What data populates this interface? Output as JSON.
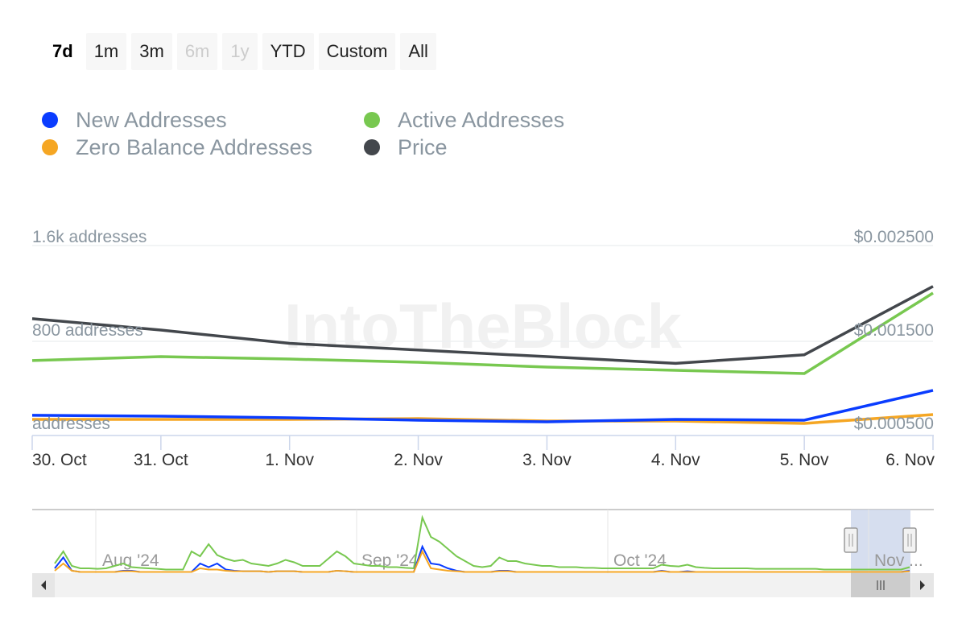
{
  "range_buttons": [
    {
      "label": "7d",
      "state": "active"
    },
    {
      "label": "1m",
      "state": "normal"
    },
    {
      "label": "3m",
      "state": "normal"
    },
    {
      "label": "6m",
      "state": "disabled"
    },
    {
      "label": "1y",
      "state": "disabled"
    },
    {
      "label": "YTD",
      "state": "normal"
    },
    {
      "label": "Custom",
      "state": "normal"
    },
    {
      "label": "All",
      "state": "normal"
    }
  ],
  "watermark": "IntoTheBlock",
  "chart_data": {
    "type": "line",
    "x": [
      "30. Oct",
      "31. Oct",
      "1. Nov",
      "2. Nov",
      "3. Nov",
      "4. Nov",
      "5. Nov",
      "6. Nov"
    ],
    "left_axis": {
      "ticks": [
        "1.6k addresses",
        "800 addresses",
        "addresses"
      ],
      "range": [
        0,
        1600
      ]
    },
    "right_axis": {
      "ticks": [
        "$0.002500",
        "$0.001500",
        "$0.000500"
      ],
      "range": [
        0.0005,
        0.0025
      ]
    },
    "series": [
      {
        "name": "New Addresses",
        "color": "#0a3cff",
        "axis": "left",
        "values": [
          170,
          163,
          149,
          129,
          115,
          136,
          129,
          380
        ]
      },
      {
        "name": "Active Addresses",
        "color": "#78c850",
        "axis": "left",
        "values": [
          631,
          664,
          644,
          617,
          576,
          549,
          522,
          1200
        ]
      },
      {
        "name": "Zero Balance Addresses",
        "color": "#f5a623",
        "axis": "left",
        "values": [
          136,
          136,
          136,
          142,
          122,
          122,
          102,
          176
        ]
      },
      {
        "name": "Price",
        "color": "#43474c",
        "axis": "right",
        "values": [
          0.00173,
          0.00161,
          0.00147,
          0.0014,
          0.00133,
          0.00126,
          0.00135,
          0.00207
        ]
      }
    ],
    "navigator": {
      "labels": [
        "Aug '24",
        "Sep '24",
        "Oct '24",
        "Nov ..."
      ],
      "active": [
        40,
        90,
        30,
        20,
        20,
        18,
        20,
        30,
        40,
        25,
        22,
        20,
        18,
        15,
        15,
        15,
        90,
        70,
        120,
        75,
        60,
        50,
        55,
        40,
        35,
        30,
        40,
        55,
        45,
        30,
        30,
        30,
        60,
        90,
        70,
        40,
        35,
        30,
        30,
        25,
        25,
        22,
        20,
        230,
        150,
        130,
        100,
        70,
        50,
        30,
        25,
        30,
        65,
        50,
        50,
        40,
        35,
        30,
        30,
        25,
        25,
        25,
        22,
        22,
        20,
        20,
        20,
        20,
        20,
        20,
        20,
        35,
        30,
        28,
        35,
        25,
        22,
        20,
        20,
        20,
        20,
        20,
        18,
        18,
        18,
        18,
        18,
        18,
        18,
        18,
        15,
        15,
        15,
        15,
        15,
        15,
        15,
        15,
        15,
        15,
        25
      ],
      "new": [
        20,
        65,
        10,
        5,
        5,
        5,
        5,
        5,
        10,
        10,
        5,
        5,
        5,
        5,
        5,
        5,
        5,
        40,
        25,
        40,
        15,
        10,
        8,
        8,
        8,
        5,
        8,
        8,
        8,
        5,
        5,
        5,
        5,
        10,
        8,
        5,
        5,
        5,
        5,
        5,
        5,
        5,
        5,
        110,
        40,
        35,
        20,
        10,
        5,
        5,
        5,
        5,
        10,
        10,
        5,
        5,
        5,
        5,
        5,
        5,
        5,
        5,
        5,
        5,
        5,
        5,
        5,
        5,
        5,
        5,
        5,
        10,
        5,
        5,
        8,
        5,
        5,
        5,
        5,
        5,
        5,
        5,
        5,
        5,
        5,
        5,
        5,
        5,
        5,
        5,
        5,
        5,
        5,
        5,
        5,
        5,
        5,
        5,
        5,
        5,
        10
      ],
      "zero": [
        10,
        40,
        10,
        5,
        5,
        5,
        5,
        5,
        8,
        8,
        5,
        5,
        5,
        5,
        5,
        5,
        5,
        20,
        15,
        15,
        10,
        8,
        8,
        8,
        8,
        5,
        8,
        8,
        8,
        5,
        5,
        5,
        5,
        10,
        8,
        5,
        5,
        5,
        5,
        5,
        5,
        5,
        5,
        90,
        20,
        15,
        10,
        8,
        5,
        5,
        5,
        5,
        8,
        8,
        5,
        5,
        5,
        5,
        5,
        5,
        5,
        5,
        5,
        5,
        5,
        5,
        5,
        5,
        5,
        5,
        5,
        8,
        5,
        5,
        5,
        5,
        5,
        5,
        5,
        5,
        5,
        5,
        5,
        5,
        5,
        5,
        5,
        5,
        5,
        5,
        5,
        5,
        5,
        5,
        5,
        5,
        5,
        5,
        5,
        5,
        8
      ]
    }
  }
}
